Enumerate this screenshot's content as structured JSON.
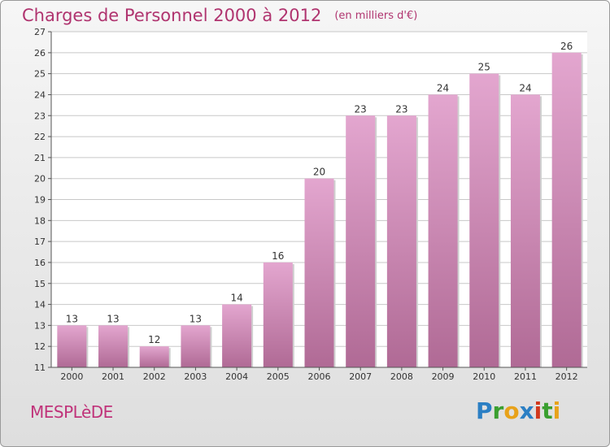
{
  "header": {
    "title": "Charges de Personnel 2000 à 2012",
    "unit": "(en milliers d'€)"
  },
  "footer": {
    "place": "MESPLèDE",
    "logo_letters": [
      "P",
      "r",
      "o",
      "x",
      "i",
      "t",
      "i"
    ],
    "logo_colors": [
      "#2b7fc4",
      "#3a9f2f",
      "#e8a21a",
      "#2b7fc4",
      "#d2391d",
      "#3a9f2f",
      "#e8a21a"
    ]
  },
  "colors": {
    "title": "#b0346f",
    "bar_top": "#e3a6cf",
    "bar_bottom": "#b06a95",
    "axis_text": "#333333",
    "grid": "#c8c8c8"
  },
  "chart_data": {
    "type": "bar",
    "categories": [
      "2000",
      "2001",
      "2002",
      "2003",
      "2004",
      "2005",
      "2006",
      "2007",
      "2008",
      "2009",
      "2010",
      "2011",
      "2012"
    ],
    "values": [
      13,
      13,
      12,
      13,
      14,
      16,
      20,
      23,
      23,
      24,
      25,
      24,
      26
    ],
    "title": "Charges de Personnel 2000 à 2012",
    "xlabel": "",
    "ylabel": "",
    "ylim": [
      11,
      27
    ],
    "yticks": [
      11,
      12,
      13,
      14,
      15,
      16,
      17,
      18,
      19,
      20,
      21,
      22,
      23,
      24,
      25,
      26,
      27
    ],
    "grid": true
  }
}
